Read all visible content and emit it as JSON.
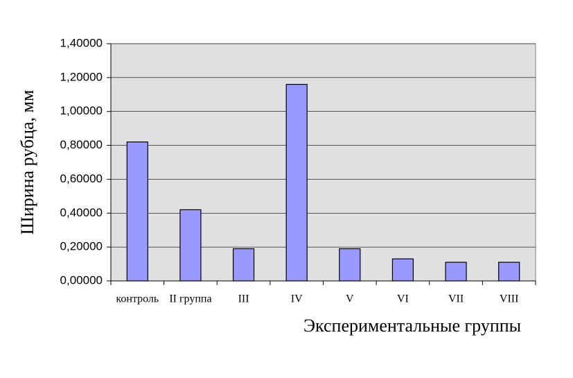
{
  "chart_data": {
    "type": "bar",
    "x_label": "Экспериментальные группы",
    "y_label": "Ширина рубца, мм",
    "categories": [
      "контроль",
      "II группа",
      "III",
      "IV",
      "V",
      "VI",
      "VII",
      "VIII"
    ],
    "values": [
      0.82,
      0.42,
      0.19,
      1.16,
      0.19,
      0.13,
      0.11,
      0.11
    ],
    "color": "#9999ff",
    "ylim": [
      0,
      1.4
    ],
    "yticks": [
      {
        "value": 0,
        "label": "0,00000"
      },
      {
        "value": 0.2,
        "label": "0,20000"
      },
      {
        "value": 0.4,
        "label": "0,40000"
      },
      {
        "value": 0.6,
        "label": "0,60000"
      },
      {
        "value": 0.8,
        "label": "0,80000"
      },
      {
        "value": 1.0,
        "label": "1,00000"
      },
      {
        "value": 1.2,
        "label": "1,20000"
      },
      {
        "value": 1.4,
        "label": "1,40000"
      }
    ],
    "grid": true
  }
}
